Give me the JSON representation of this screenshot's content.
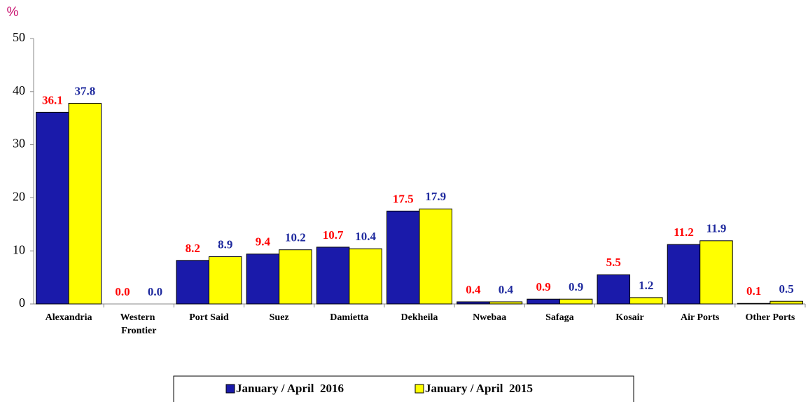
{
  "chart_data": {
    "type": "bar",
    "ylabel": "%",
    "categories": [
      "Alexandria",
      "Western Frontier",
      "Port Said",
      "Suez",
      "Damietta",
      "Dekheila",
      "Nwebaa",
      "Safaga",
      "Kosair",
      "Air Ports",
      "Other Ports"
    ],
    "series": [
      {
        "name": "January / April  2016",
        "color": "#1a1aaa",
        "label_color": "#ff0000",
        "values": [
          36.1,
          0,
          8.2,
          9.4,
          10.7,
          17.5,
          0.4,
          0.9,
          5.5,
          11.2,
          0.1
        ],
        "value_labels": [
          "36.1",
          "0.0",
          "8.2",
          "9.4",
          "10.7",
          "17.5",
          "0.4",
          "0.9",
          "5.5",
          "11.2",
          "0.1"
        ]
      },
      {
        "name": "January / April  2015",
        "color": "#ffff00",
        "label_color": "#1f2a9e",
        "values": [
          37.8,
          0,
          8.9,
          10.2,
          10.4,
          17.9,
          0.4,
          0.9,
          1.2,
          11.9,
          0.5
        ],
        "value_labels": [
          "37.8",
          "0.0",
          "8.9",
          "10.2",
          "10.4",
          "17.9",
          "0.4",
          "0.9",
          "1.2",
          "11.9",
          "0.5"
        ]
      }
    ],
    "ylim": [
      0,
      50
    ],
    "yticks": [
      0,
      10,
      20,
      30,
      40,
      50
    ],
    "grid": false,
    "legend": "bottom"
  }
}
